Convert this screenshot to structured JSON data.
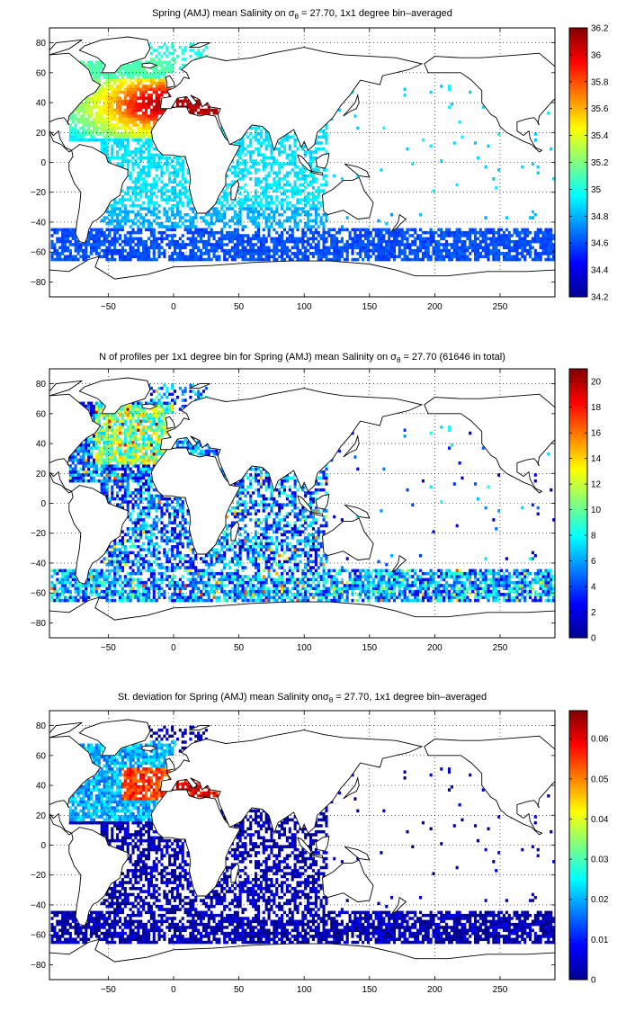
{
  "colors": {
    "land_outline": "#000000",
    "grid": "#000000",
    "colormap": "jet"
  },
  "chart_data": [
    {
      "type": "heatmap",
      "title_parts": [
        "Spring (AMJ) mean Salinity on ",
        "σ",
        "θ",
        " = 27.70, 1x1 degree bin–averaged"
      ],
      "xlim": [
        -95,
        292
      ],
      "ylim": [
        -90,
        90
      ],
      "xticks": [
        -50,
        0,
        50,
        100,
        150,
        200,
        250
      ],
      "yticks": [
        80,
        60,
        40,
        20,
        0,
        -20,
        -40,
        -60,
        -80
      ],
      "grid": true,
      "colorbar": {
        "min": 34.2,
        "max": 36.2,
        "ticks": [
          36.2,
          36,
          35.8,
          35.6,
          35.4,
          35.2,
          35,
          34.8,
          34.6,
          34.4,
          34.2
        ]
      },
      "description_values": {
        "north_atlantic_subtropical": 35.7,
        "mediterranean_outflow_core": 36.1,
        "nordic_seas": 35.0,
        "southern_ocean": 34.6,
        "indian_ocean": 34.9
      }
    },
    {
      "type": "heatmap",
      "title_parts": [
        "N of profiles per 1x1 degree bin for Spring (AMJ) mean Salinity on ",
        "σ",
        "θ",
        " = 27.70 (61646 in total)"
      ],
      "xlim": [
        -95,
        292
      ],
      "ylim": [
        -90,
        90
      ],
      "xticks": [
        -50,
        0,
        50,
        100,
        150,
        200,
        250
      ],
      "yticks": [
        80,
        60,
        40,
        20,
        0,
        -20,
        -40,
        -60,
        -80
      ],
      "grid": true,
      "colorbar": {
        "min": 0,
        "max": 21,
        "ticks": [
          20,
          18,
          16,
          14,
          12,
          10,
          8,
          6,
          4,
          2,
          0
        ]
      },
      "total_profiles": 61646
    },
    {
      "type": "heatmap",
      "title_parts": [
        "St. deviation for Spring (AMJ) mean Salinity on",
        "σ",
        "θ",
        " = 27.70, 1x1 degree bin–averaged"
      ],
      "xlim": [
        -95,
        292
      ],
      "ylim": [
        -90,
        90
      ],
      "xticks": [
        -50,
        0,
        50,
        100,
        150,
        200,
        250
      ],
      "yticks": [
        80,
        60,
        40,
        20,
        0,
        -20,
        -40,
        -60,
        -80
      ],
      "grid": true,
      "colorbar": {
        "min": 0,
        "max": 0.067,
        "ticks": [
          0.06,
          0.05,
          0.04,
          0.03,
          0.02,
          0.01,
          0
        ]
      }
    }
  ]
}
